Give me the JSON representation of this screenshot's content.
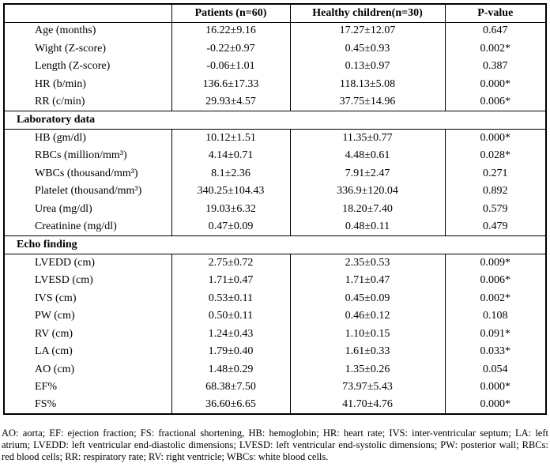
{
  "table": {
    "columns": [
      "",
      "Patients (n=60)",
      "Healthy children(n=30)",
      "P-value"
    ],
    "sections": [
      {
        "title": null,
        "rows": [
          {
            "label": "Age (months)",
            "patients": "16.22±9.16",
            "healthy": "17.27±12.07",
            "p": "0.647"
          },
          {
            "label": "Wight (Z-score)",
            "patients": "-0.22±0.97",
            "healthy": "0.45±0.93",
            "p": "0.002*"
          },
          {
            "label": "Length (Z-score)",
            "patients": "-0.06±1.01",
            "healthy": "0.13±0.97",
            "p": "0.387"
          },
          {
            "label": "HR (b/min)",
            "patients": "136.6±17.33",
            "healthy": "118.13±5.08",
            "p": "0.000*"
          },
          {
            "label": "RR (c/min)",
            "patients": "29.93±4.57",
            "healthy": "37.75±14.96",
            "p": "0.006*"
          }
        ]
      },
      {
        "title": "Laboratory data",
        "rows": [
          {
            "label": "HB (gm/dl)",
            "patients": "10.12±1.51",
            "healthy": "11.35±0.77",
            "p": "0.000*"
          },
          {
            "label": "RBCs (million/mm³)",
            "patients": "4.14±0.71",
            "healthy": "4.48±0.61",
            "p": "0.028*"
          },
          {
            "label": "WBCs (thousand/mm³)",
            "patients": "8.1±2.36",
            "healthy": "7.91±2.47",
            "p": "0.271"
          },
          {
            "label": "Platelet (thousand/mm³)",
            "patients": "340.25±104.43",
            "healthy": "336.9±120.04",
            "p": "0.892"
          },
          {
            "label": "Urea (mg/dl)",
            "patients": "19.03±6.32",
            "healthy": "18.20±7.40",
            "p": "0.579"
          },
          {
            "label": "Creatinine (mg/dl)",
            "patients": "0.47±0.09",
            "healthy": "0.48±0.11",
            "p": "0.479"
          }
        ]
      },
      {
        "title": "Echo finding",
        "rows": [
          {
            "label": "LVEDD (cm)",
            "patients": "2.75±0.72",
            "healthy": "2.35±0.53",
            "p": "0.009*"
          },
          {
            "label": "LVESD (cm)",
            "patients": "1.71±0.47",
            "healthy": "1.71±0.47",
            "p": "0.006*"
          },
          {
            "label": "IVS (cm)",
            "patients": "0.53±0.11",
            "healthy": "0.45±0.09",
            "p": "0.002*"
          },
          {
            "label": "PW (cm)",
            "patients": "0.50±0.11",
            "healthy": "0.46±0.12",
            "p": "0.108"
          },
          {
            "label": "RV (cm)",
            "patients": "1.24±0.43",
            "healthy": "1.10±0.15",
            "p": "0.091*"
          },
          {
            "label": "LA (cm)",
            "patients": "1.79±0.40",
            "healthy": "1.61±0.33",
            "p": "0.033*"
          },
          {
            "label": "AO (cm)",
            "patients": "1.48±0.29",
            "healthy": "1.35±0.26",
            "p": "0.054"
          },
          {
            "label": "EF%",
            "patients": "68.38±7.50",
            "healthy": "73.97±5.43",
            "p": "0.000*"
          },
          {
            "label": "FS%",
            "patients": "36.60±6.65",
            "healthy": "41.70±4.76",
            "p": "0.000*"
          }
        ]
      }
    ]
  },
  "footnote": "AO: aorta; EF: ejection fraction; FS: fractional shortening, HB: hemoglobin; HR: heart rate; IVS: inter-ventricular septum; LA: left atrium; LVEDD: left ventricular end-diastolic dimensions; LVESD: left ventricular end-systolic dimensions; PW: posterior wall; RBCs: red blood cells; RR: respiratory rate; RV: right ventricle; WBCs: white blood cells."
}
